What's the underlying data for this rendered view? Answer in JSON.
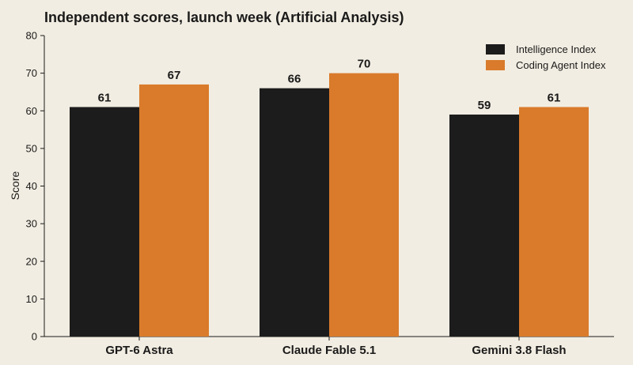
{
  "chart_data": {
    "type": "bar",
    "title": "Independent scores, launch week (Artificial Analysis)",
    "ylabel": "Score",
    "xlabel": "",
    "ylim": [
      0,
      80
    ],
    "yticks": [
      0,
      10,
      20,
      30,
      40,
      50,
      60,
      70,
      80
    ],
    "categories": [
      "GPT-6 Astra",
      "Claude Fable 5.1",
      "Gemini 3.8 Flash"
    ],
    "series": [
      {
        "name": "Intelligence Index",
        "values": [
          61,
          66,
          59
        ],
        "color": "#1c1c1c"
      },
      {
        "name": "Coding Agent Index",
        "values": [
          67,
          70,
          61
        ],
        "color": "#d97b2b"
      }
    ],
    "legend_position": "top-right",
    "grid": false,
    "data_labels": true
  }
}
